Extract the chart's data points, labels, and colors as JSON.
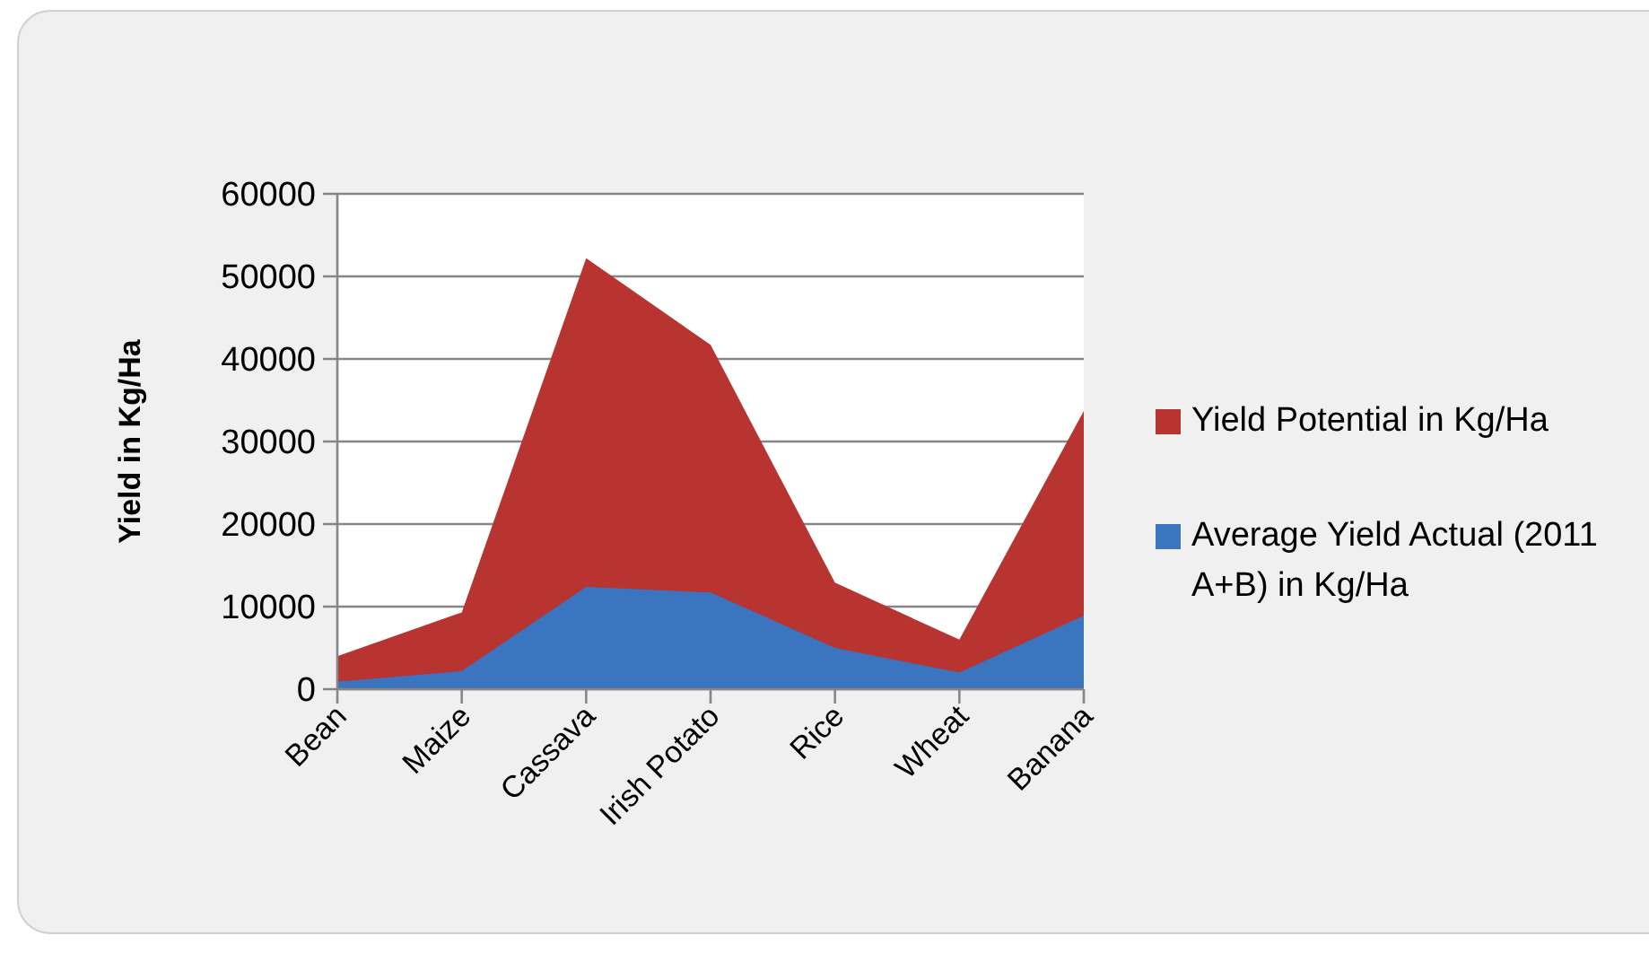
{
  "chart_data": {
    "type": "area",
    "ylabel": "Yield in Kg/Ha",
    "categories": [
      "Bean",
      "Maize",
      "Cassava",
      "Irish Potato",
      "Rice",
      "Wheat",
      "Banana"
    ],
    "series": [
      {
        "name": "Yield Potential in Kg/Ha",
        "color": "#b83431",
        "values": [
          4000,
          9300,
          52200,
          41700,
          12900,
          6000,
          33700
        ]
      },
      {
        "name": "Average Yield Actual (2011 A+B) in Kg/Ha",
        "color": "#3b74bf",
        "values": [
          900,
          2200,
          12400,
          11700,
          5000,
          2000,
          8900
        ]
      }
    ],
    "ylim": [
      0,
      60000
    ],
    "yticks": [
      0,
      10000,
      20000,
      30000,
      40000,
      50000,
      60000
    ],
    "grid": "y",
    "legend": "right"
  }
}
